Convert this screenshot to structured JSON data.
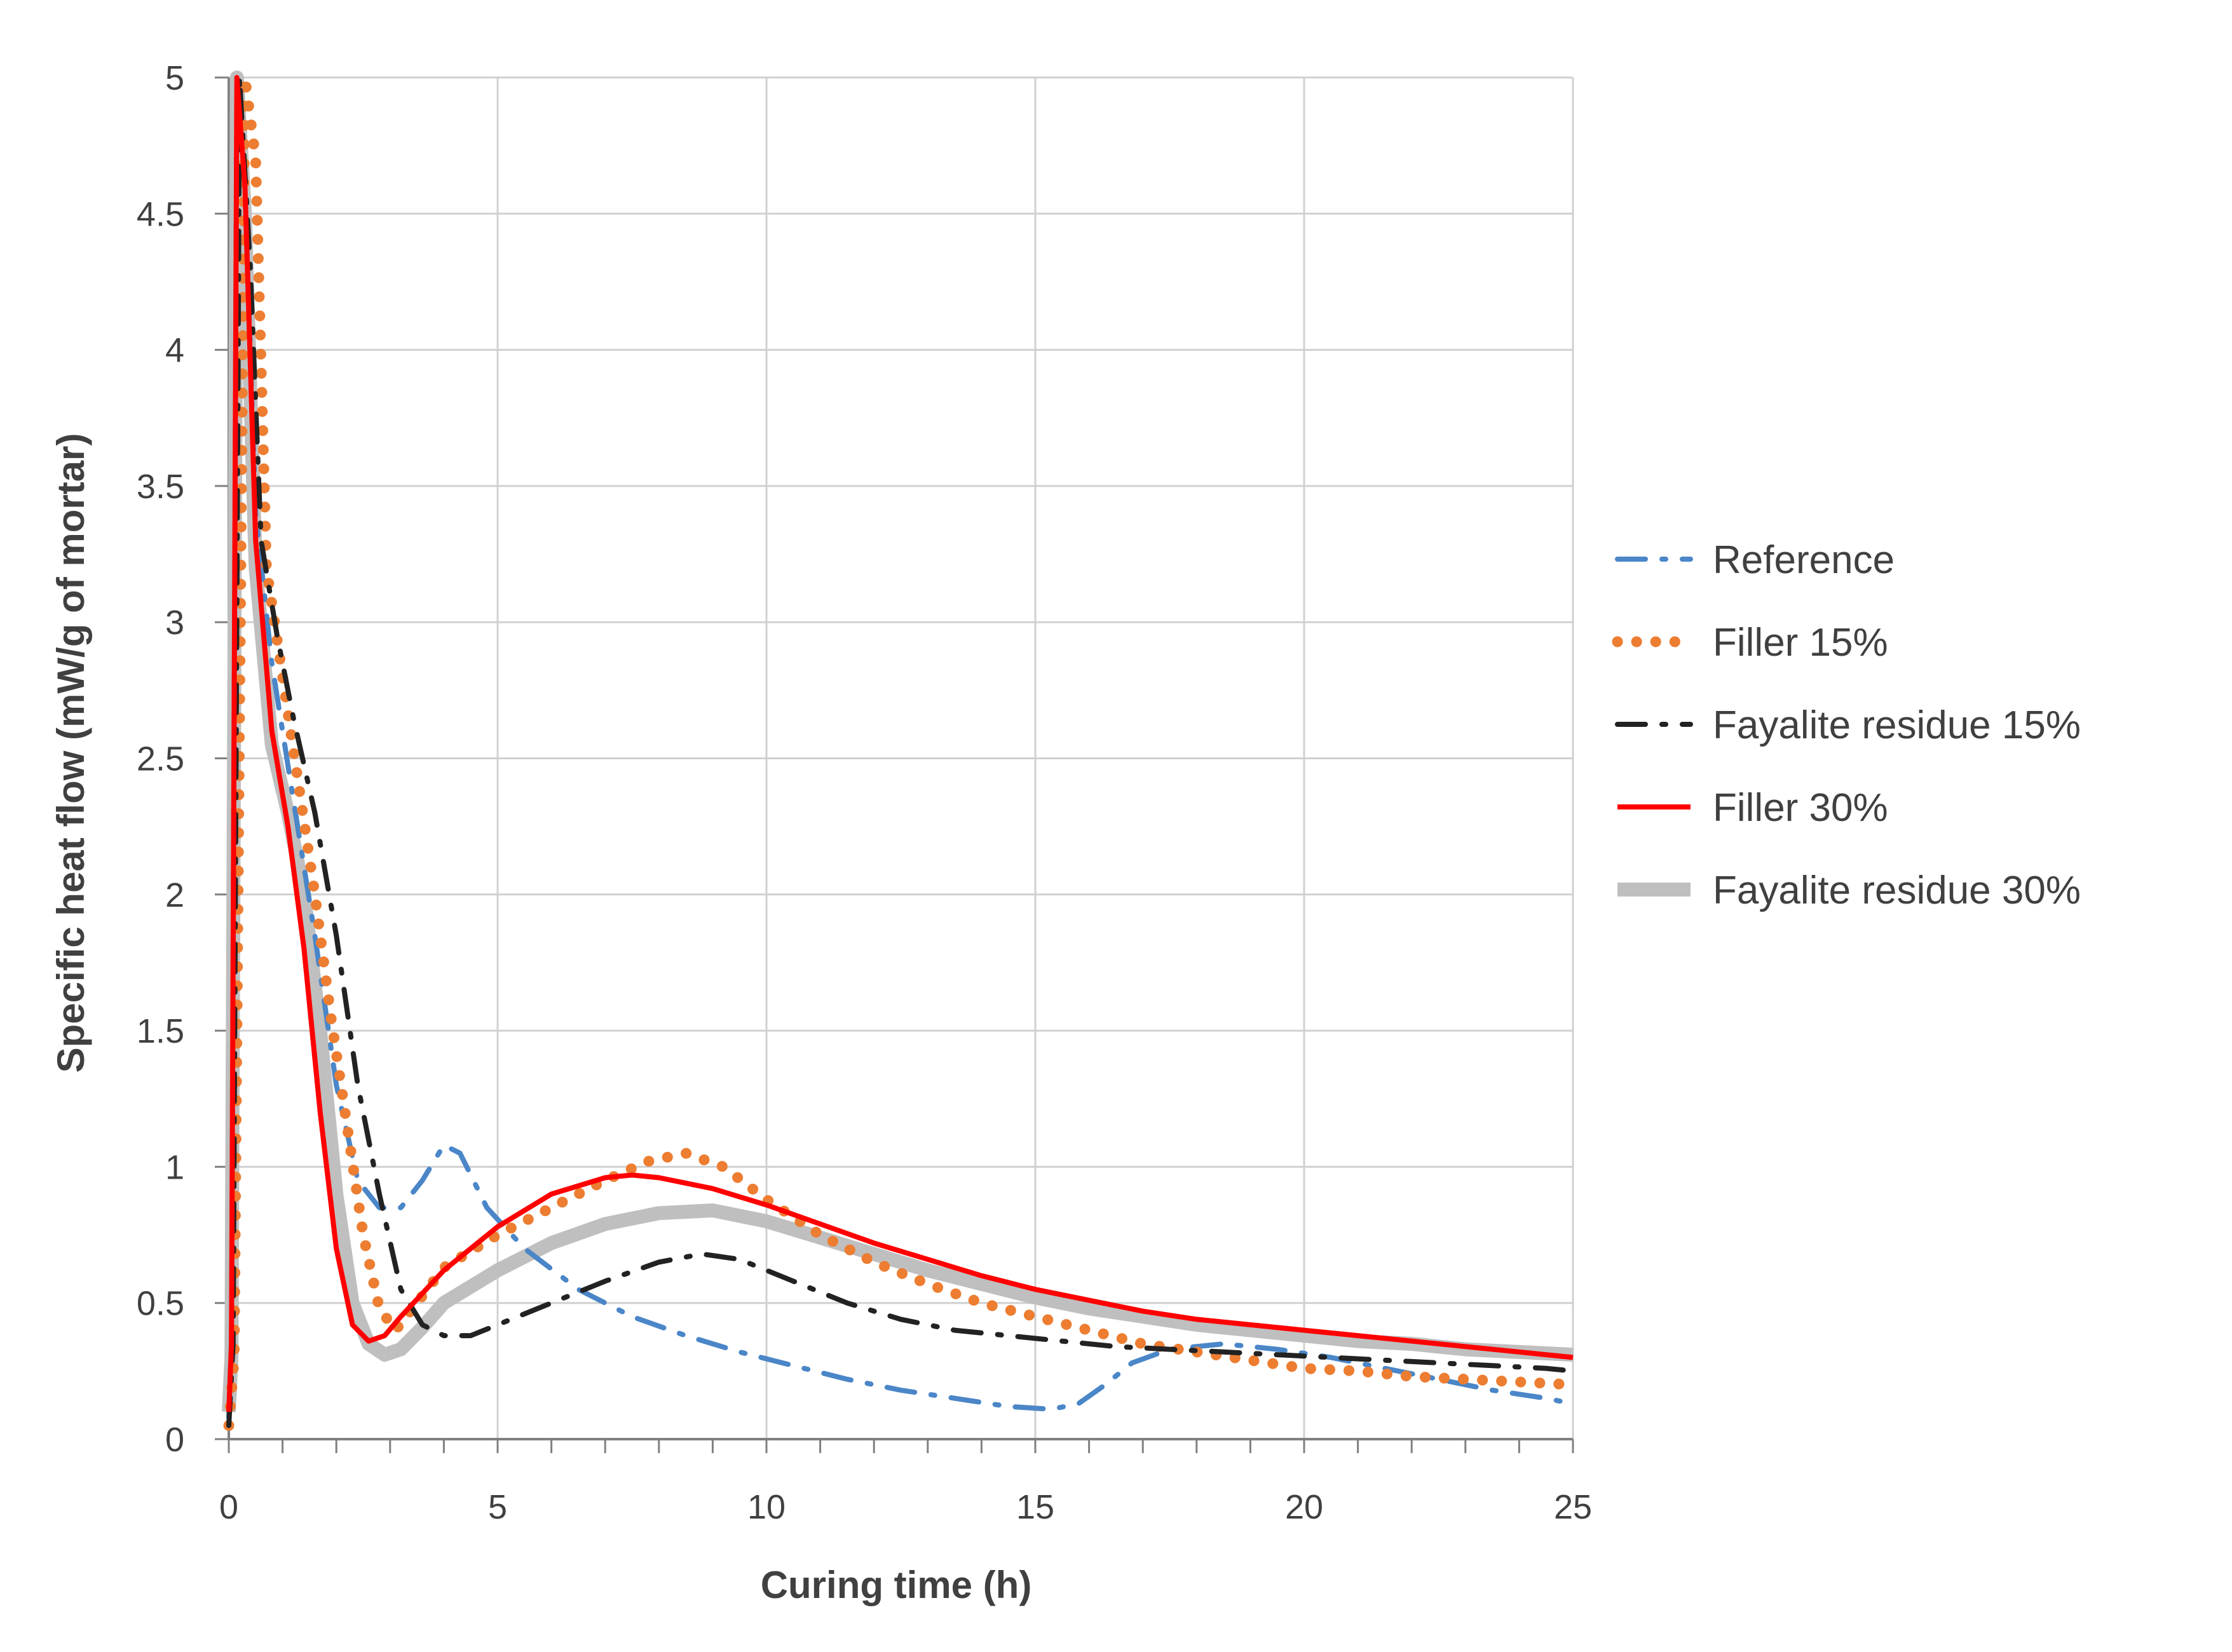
{
  "chart_data": {
    "type": "line",
    "title": "",
    "xlabel": "Curing time (h)",
    "ylabel": "Specific heat flow (mW/g of mortar)",
    "xlim": [
      0,
      25
    ],
    "ylim": [
      0,
      5
    ],
    "xticks": [
      0,
      5,
      10,
      15,
      20,
      25
    ],
    "yticks": [
      0,
      0.5,
      1,
      1.5,
      2,
      2.5,
      3,
      3.5,
      4,
      4.5,
      5
    ],
    "xtick_labels": [
      "0",
      "5",
      "10",
      "15",
      "20",
      "25"
    ],
    "ytick_labels": [
      "0",
      "0.5",
      "1",
      "1.5",
      "2",
      "2.5",
      "3",
      "3.5",
      "4",
      "4.5",
      "5"
    ],
    "grid": true,
    "legend_position": "right",
    "series": [
      {
        "name": "Reference",
        "color": "#4a86c8",
        "style": "dash-dot",
        "x": [
          0,
          0.05,
          0.15,
          0.3,
          0.5,
          0.8,
          1.2,
          1.6,
          2.0,
          2.4,
          2.8,
          3.2,
          3.6,
          4.0,
          4.3,
          4.8,
          5.5,
          6.5,
          7.5,
          8.5,
          9.5,
          10.5,
          11.5,
          12.5,
          13.5,
          14.5,
          15.3,
          15.8,
          16.3,
          16.8,
          17.5,
          18.5,
          19.5,
          20.5,
          21.5,
          22.5,
          23.5,
          24.5,
          25
        ],
        "y": [
          0.08,
          0.35,
          5.0,
          4.6,
          3.4,
          2.85,
          2.35,
          1.85,
          1.3,
          0.95,
          0.85,
          0.85,
          0.95,
          1.08,
          1.05,
          0.85,
          0.7,
          0.55,
          0.45,
          0.38,
          0.32,
          0.27,
          0.22,
          0.18,
          0.15,
          0.12,
          0.11,
          0.13,
          0.2,
          0.28,
          0.33,
          0.35,
          0.33,
          0.3,
          0.26,
          0.22,
          0.18,
          0.15,
          0.13
        ]
      },
      {
        "name": "Filler 15%",
        "color": "#ed7d31",
        "style": "dotted",
        "x": [
          0,
          0.1,
          0.3,
          0.5,
          0.7,
          1.0,
          1.3,
          1.6,
          1.9,
          2.2,
          2.5,
          2.8,
          3.1,
          3.5,
          4.0,
          5.0,
          6.0,
          7.0,
          7.8,
          8.5,
          9.2,
          10.0,
          11.0,
          12.0,
          13.0,
          14.0,
          15.0,
          16.0,
          17.0,
          18.0,
          19.0,
          20.0,
          21.0,
          22.0,
          23.0,
          24.0,
          25
        ],
        "y": [
          0.05,
          0.3,
          5.0,
          4.7,
          3.2,
          2.8,
          2.4,
          2.0,
          1.55,
          1.15,
          0.75,
          0.48,
          0.4,
          0.5,
          0.63,
          0.75,
          0.85,
          0.95,
          1.02,
          1.05,
          1.0,
          0.88,
          0.75,
          0.65,
          0.57,
          0.5,
          0.45,
          0.4,
          0.35,
          0.32,
          0.29,
          0.26,
          0.25,
          0.23,
          0.22,
          0.21,
          0.2
        ]
      },
      {
        "name": "Fayalite residue 15%",
        "color": "#222222",
        "style": "dash-dot",
        "x": [
          0,
          0.08,
          0.2,
          0.4,
          0.6,
          0.9,
          1.2,
          1.6,
          2.0,
          2.4,
          2.8,
          3.2,
          3.6,
          4.0,
          4.5,
          5.0,
          6.0,
          7.0,
          8.0,
          8.8,
          9.5,
          10.5,
          11.5,
          12.5,
          13.5,
          14.5,
          15.5,
          16.5,
          17.5,
          18.5,
          19.5,
          20.5,
          21.5,
          22.5,
          23.5,
          24.5,
          25
        ],
        "y": [
          0.05,
          0.35,
          5.0,
          4.3,
          3.3,
          2.95,
          2.65,
          2.3,
          1.85,
          1.3,
          0.9,
          0.55,
          0.42,
          0.38,
          0.38,
          0.42,
          0.5,
          0.58,
          0.65,
          0.68,
          0.66,
          0.58,
          0.5,
          0.44,
          0.4,
          0.38,
          0.36,
          0.34,
          0.33,
          0.32,
          0.31,
          0.3,
          0.29,
          0.28,
          0.27,
          0.26,
          0.25
        ]
      },
      {
        "name": "Filler 30%",
        "color": "#ff0000",
        "style": "solid",
        "x": [
          0,
          0.05,
          0.15,
          0.3,
          0.5,
          0.8,
          1.1,
          1.4,
          1.7,
          2.0,
          2.3,
          2.6,
          2.9,
          3.2,
          4.0,
          5.0,
          6.0,
          7.0,
          7.5,
          8.0,
          9.0,
          10.0,
          11.0,
          12.0,
          13.0,
          14.0,
          15.0,
          16.0,
          17.0,
          18.0,
          19.0,
          20.0,
          21.0,
          22.0,
          23.0,
          24.0,
          25
        ],
        "y": [
          0.1,
          0.35,
          5.0,
          4.6,
          3.3,
          2.6,
          2.25,
          1.8,
          1.2,
          0.7,
          0.42,
          0.36,
          0.38,
          0.45,
          0.62,
          0.78,
          0.9,
          0.96,
          0.97,
          0.96,
          0.92,
          0.86,
          0.79,
          0.72,
          0.66,
          0.6,
          0.55,
          0.51,
          0.47,
          0.44,
          0.42,
          0.4,
          0.38,
          0.36,
          0.34,
          0.32,
          0.3
        ]
      },
      {
        "name": "Fayalite residue 30%",
        "color": "#bfbfbf",
        "style": "thick",
        "x": [
          0,
          0.05,
          0.15,
          0.3,
          0.5,
          0.8,
          1.1,
          1.4,
          1.7,
          2.0,
          2.3,
          2.6,
          2.9,
          3.2,
          3.6,
          4.0,
          5.0,
          6.0,
          7.0,
          8.0,
          9.0,
          10.0,
          11.0,
          12.0,
          13.0,
          14.0,
          15.0,
          16.0,
          17.0,
          18.0,
          19.0,
          20.0,
          21.0,
          22.0,
          23.0,
          24.0,
          25
        ],
        "y": [
          0.1,
          0.3,
          5.0,
          4.5,
          3.2,
          2.55,
          2.3,
          2.0,
          1.5,
          0.9,
          0.5,
          0.35,
          0.31,
          0.33,
          0.41,
          0.5,
          0.62,
          0.72,
          0.79,
          0.83,
          0.84,
          0.8,
          0.74,
          0.68,
          0.62,
          0.57,
          0.52,
          0.48,
          0.45,
          0.42,
          0.4,
          0.38,
          0.36,
          0.35,
          0.33,
          0.32,
          0.31
        ]
      }
    ]
  }
}
